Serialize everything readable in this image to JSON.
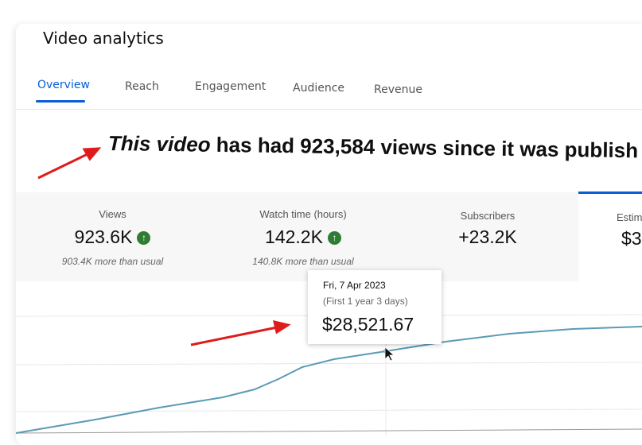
{
  "header": {
    "title": "Video analytics"
  },
  "tabs": [
    "Overview",
    "Reach",
    "Engagement",
    "Audience",
    "Revenue"
  ],
  "headline": "This video has had 923,584 views since it was publish",
  "cards": [
    {
      "label": "Views",
      "value": "923.6K",
      "note": "903.4K more than usual"
    },
    {
      "label": "Watch time (hours)",
      "value": "142.2K",
      "note": "140.8K more than usual"
    },
    {
      "label": "Subscribers",
      "value": "+23.2K"
    },
    {
      "label": "Estim",
      "value": "$3"
    }
  ],
  "tooltip": {
    "date": "Fri, 7 Apr 2023",
    "period": "(First 1 year 3 days)",
    "value": "$28,521.67"
  }
}
